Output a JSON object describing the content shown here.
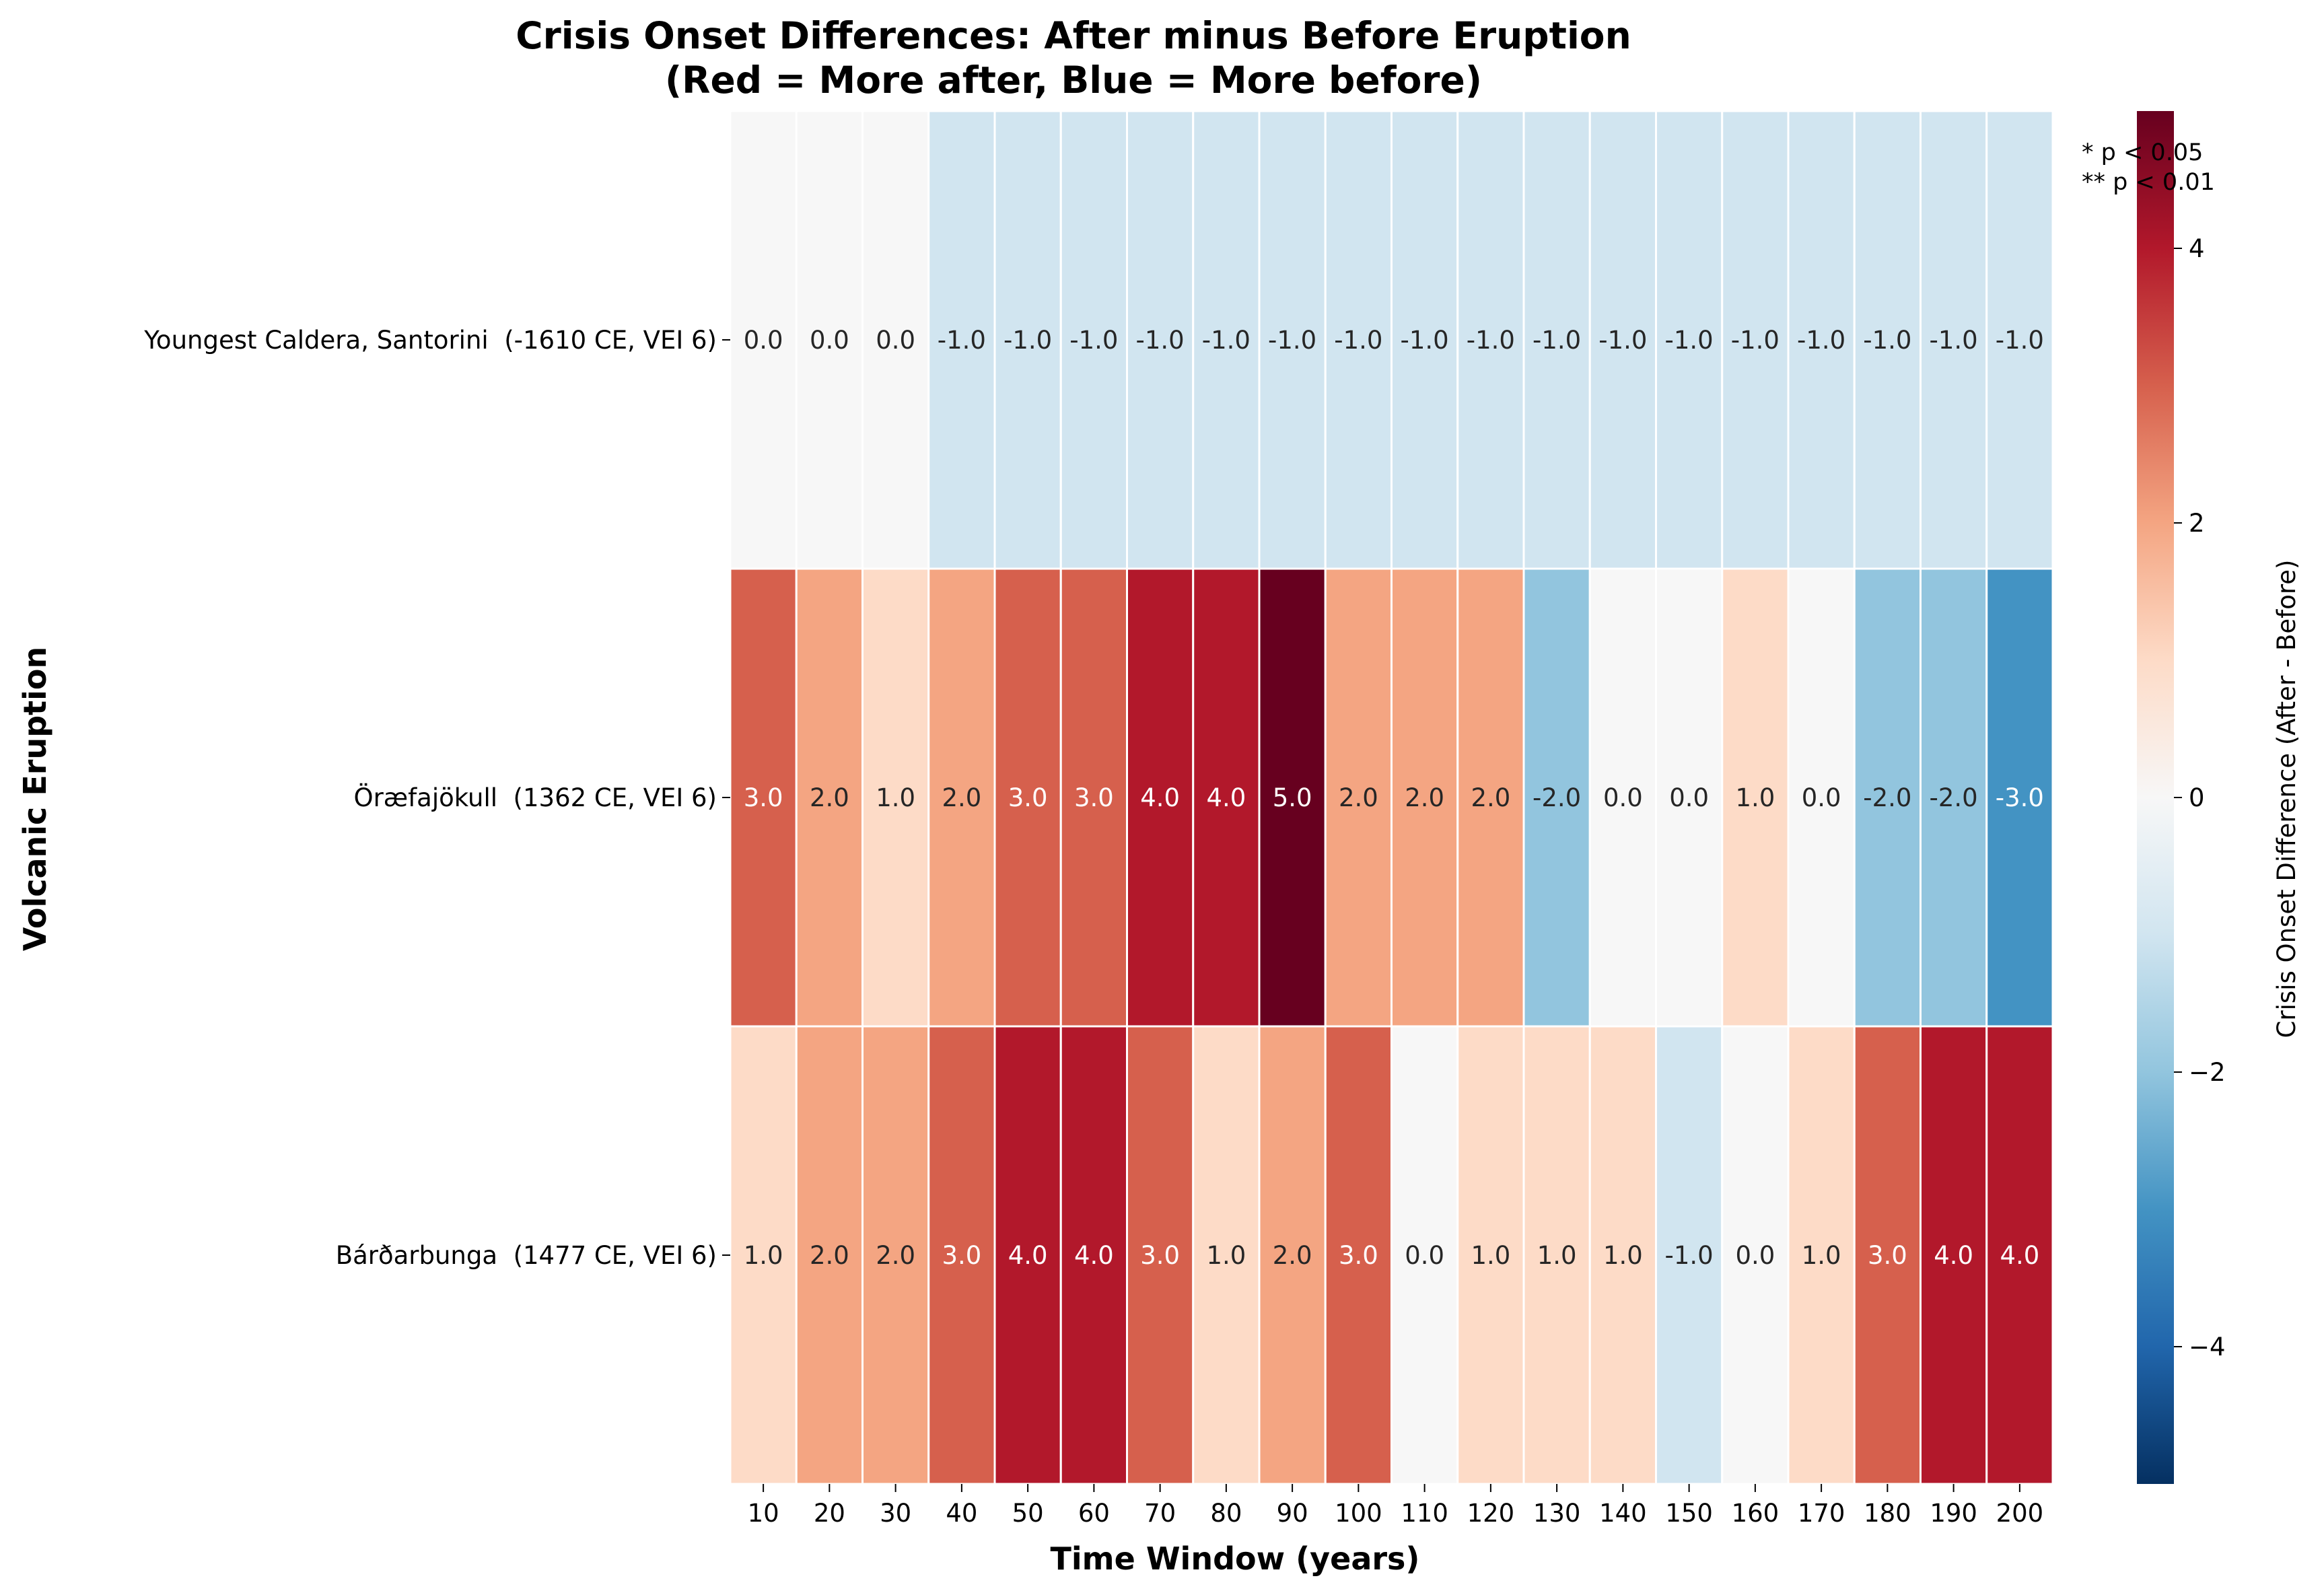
{
  "chart_data": {
    "type": "heatmap",
    "title": "Crisis Onset Differences: After minus Before Eruption",
    "subtitle": "(Red = More after, Blue = More before)",
    "xlabel": "Time Window (years)",
    "ylabel": "Volcanic Eruption",
    "colorbar_label": "Crisis Onset Difference (After - Before)",
    "colorbar_range": [
      -5,
      5
    ],
    "colorbar_ticks": [
      -4,
      -2,
      0,
      2,
      4
    ],
    "colormap": "RdBu_r",
    "colors": {
      "low": "#053061",
      "mid": "#f7f7f7",
      "high": "#67001f",
      "grid_line": "#ffffff"
    },
    "x": [
      "10",
      "20",
      "30",
      "40",
      "50",
      "60",
      "70",
      "80",
      "90",
      "100",
      "110",
      "120",
      "130",
      "140",
      "150",
      "160",
      "170",
      "180",
      "190",
      "200"
    ],
    "y": [
      "Youngest Caldera, Santorini  (-1610 CE, VEI 6)",
      "Öræfajökull  (1362 CE, VEI 6)",
      "Bárðarbunga  (1477 CE, VEI 6)"
    ],
    "values": [
      [
        0,
        0,
        0,
        -1,
        -1,
        -1,
        -1,
        -1,
        -1,
        -1,
        -1,
        -1,
        -1,
        -1,
        -1,
        -1,
        -1,
        -1,
        -1,
        -1
      ],
      [
        3,
        2,
        1,
        2,
        3,
        3,
        4,
        4,
        5,
        2,
        2,
        2,
        -2,
        0,
        0,
        1,
        0,
        -2,
        -2,
        -3
      ],
      [
        1,
        2,
        2,
        3,
        4,
        4,
        3,
        1,
        2,
        3,
        0,
        1,
        1,
        1,
        -1,
        0,
        1,
        3,
        4,
        4
      ]
    ],
    "annotation_format": "0.0",
    "significance_legend": [
      "* p < 0.05",
      "** p < 0.01"
    ],
    "legend_position": "top-right (partly behind colorbar)"
  }
}
